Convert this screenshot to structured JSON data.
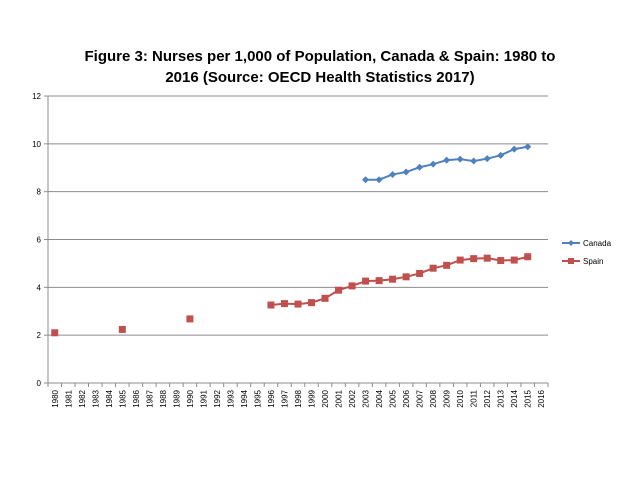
{
  "chart_data": {
    "type": "line",
    "title_line1": "Figure 3: Nurses per 1,000 of Population, Canada & Spain: 1980 to",
    "title_line2": "2016 (Source: OECD Health Statistics 2017)",
    "xlabel": "",
    "ylabel": "",
    "ylim": [
      0,
      12
    ],
    "yticks": [
      "0",
      "2",
      "4",
      "6",
      "8",
      "10",
      "12"
    ],
    "grid": true,
    "legend_position": "right",
    "categories": [
      "1980",
      "1981",
      "1982",
      "1983",
      "1984",
      "1985",
      "1986",
      "1987",
      "1988",
      "1989",
      "1990",
      "1991",
      "1992",
      "1993",
      "1994",
      "1995",
      "1996",
      "1997",
      "1998",
      "1999",
      "2000",
      "2001",
      "2002",
      "2003",
      "2004",
      "2005",
      "2006",
      "2007",
      "2008",
      "2009",
      "2010",
      "2011",
      "2012",
      "2013",
      "2014",
      "2015",
      "2016"
    ],
    "series": [
      {
        "name": "Canada",
        "color": "#4f81bd",
        "marker": "diamond",
        "values": [
          null,
          null,
          null,
          null,
          null,
          null,
          null,
          null,
          null,
          null,
          null,
          null,
          null,
          null,
          null,
          null,
          null,
          null,
          null,
          null,
          null,
          null,
          null,
          8.5,
          8.5,
          8.72,
          8.82,
          9.02,
          9.15,
          9.32,
          9.36,
          9.28,
          9.38,
          9.52,
          9.78,
          9.88,
          null
        ]
      },
      {
        "name": "Spain",
        "color": "#c0504d",
        "marker": "square",
        "values": [
          2.1,
          null,
          null,
          null,
          null,
          2.24,
          null,
          null,
          null,
          null,
          2.68,
          null,
          null,
          null,
          null,
          null,
          3.26,
          3.32,
          3.3,
          3.36,
          3.54,
          3.88,
          4.06,
          4.26,
          4.28,
          4.34,
          4.44,
          4.58,
          4.8,
          4.92,
          5.14,
          5.2,
          5.22,
          5.12,
          5.14,
          5.28,
          null
        ]
      }
    ]
  }
}
